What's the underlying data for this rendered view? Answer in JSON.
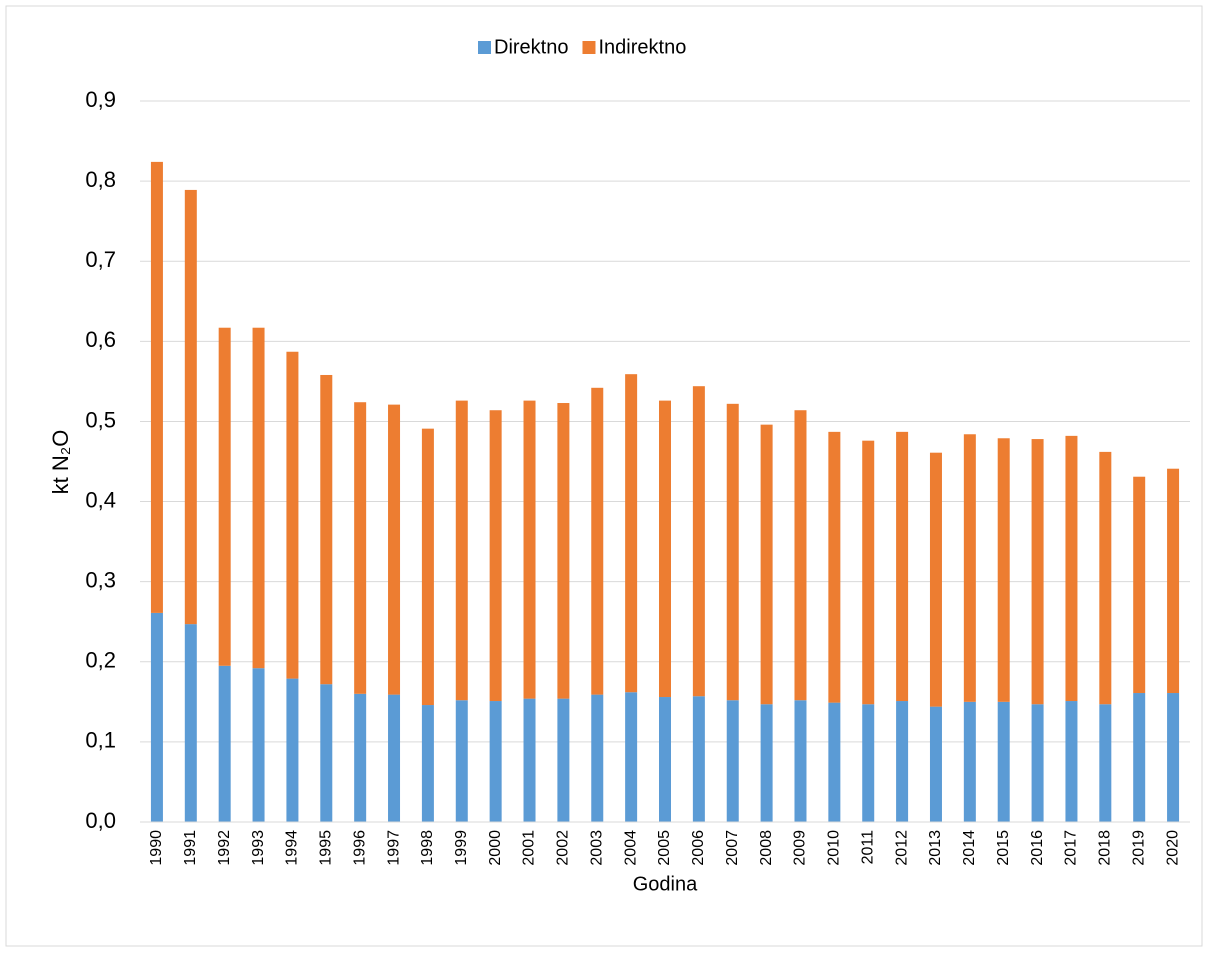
{
  "chart_data": {
    "type": "stacked-bar",
    "x_label": "Godina",
    "y_label": "kt N₂O",
    "categories": [
      "1990",
      "1991",
      "1992",
      "1993",
      "1994",
      "1995",
      "1996",
      "1997",
      "1998",
      "1999",
      "2000",
      "2001",
      "2002",
      "2003",
      "2004",
      "2005",
      "2006",
      "2007",
      "2008",
      "2009",
      "2010",
      "2011",
      "2012",
      "2013",
      "2014",
      "2015",
      "2016",
      "2017",
      "2018",
      "2019",
      "2020"
    ],
    "series": [
      {
        "name": "Direktno",
        "color": "#5b9bd5",
        "values": [
          0.261,
          0.247,
          0.195,
          0.192,
          0.179,
          0.172,
          0.16,
          0.159,
          0.146,
          0.152,
          0.151,
          0.154,
          0.154,
          0.159,
          0.162,
          0.156,
          0.157,
          0.152,
          0.147,
          0.152,
          0.149,
          0.147,
          0.151,
          0.144,
          0.15,
          0.15,
          0.147,
          0.151,
          0.147,
          0.161,
          0.161
        ]
      },
      {
        "name": "Indirektno",
        "color": "#ed7d31",
        "values": [
          0.563,
          0.542,
          0.422,
          0.425,
          0.408,
          0.386,
          0.364,
          0.362,
          0.345,
          0.374,
          0.363,
          0.372,
          0.369,
          0.383,
          0.397,
          0.37,
          0.387,
          0.37,
          0.349,
          0.362,
          0.338,
          0.329,
          0.336,
          0.317,
          0.334,
          0.329,
          0.331,
          0.331,
          0.315,
          0.27,
          0.28
        ]
      }
    ],
    "ylim": [
      0,
      0.9
    ],
    "yticks": [
      {
        "value": 0,
        "label": "0,0"
      },
      {
        "value": 0.1,
        "label": "0,1"
      },
      {
        "value": 0.2,
        "label": "0,2"
      },
      {
        "value": 0.3,
        "label": "0,3"
      },
      {
        "value": 0.4,
        "label": "0,4"
      },
      {
        "value": 0.5,
        "label": "0,5"
      },
      {
        "value": 0.6,
        "label": "0,6"
      },
      {
        "value": 0.7,
        "label": "0,7"
      },
      {
        "value": 0.8,
        "label": "0,8"
      },
      {
        "value": 0.9,
        "label": "0,9"
      }
    ],
    "grid": true,
    "legend": "top"
  }
}
